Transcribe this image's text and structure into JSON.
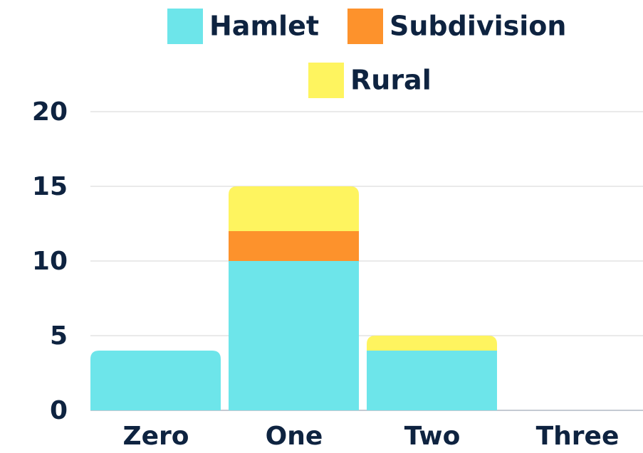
{
  "chart_data": {
    "type": "bar",
    "stacked": true,
    "categories": [
      "Zero",
      "One",
      "Two",
      "Three"
    ],
    "series": [
      {
        "name": "Hamlet",
        "color": "#6de5ea",
        "values": [
          4,
          10,
          4,
          0
        ]
      },
      {
        "name": "Subdivision",
        "color": "#fd922c",
        "values": [
          0,
          2,
          0,
          0
        ]
      },
      {
        "name": "Rural",
        "color": "#fef45f",
        "values": [
          0,
          3,
          1,
          0
        ]
      }
    ],
    "ylim": [
      0,
      20
    ],
    "yticks": [
      0,
      5,
      10,
      15,
      20
    ],
    "grid": true,
    "legend": "top"
  }
}
